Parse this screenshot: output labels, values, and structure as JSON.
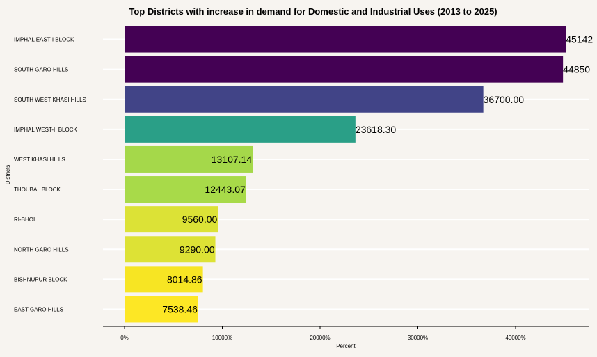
{
  "chart_data": {
    "type": "bar",
    "orientation": "horizontal",
    "title": "Top Districts with increase in demand for Domestic and Industrial Uses (2013 to 2025)",
    "xlabel": "Percent",
    "ylabel": "Districts",
    "xlim": [
      0,
      47000
    ],
    "x_ticks": [
      0,
      10000,
      20000,
      30000,
      40000
    ],
    "x_tick_labels": [
      "0%",
      "10000%",
      "20000%",
      "30000%",
      "40000%"
    ],
    "grid": "horizontal lines only",
    "background": "#f7f4f0",
    "bars": [
      {
        "category": "IMPHAL EAST-I BLOCK",
        "value": 45142.0,
        "label": "45142",
        "color": "#440154"
      },
      {
        "category": "SOUTH GARO HILLS",
        "value": 44850.0,
        "label": "44850",
        "color": "#440154"
      },
      {
        "category": "SOUTH WEST KHASI HILLS",
        "value": 36700.0,
        "label": "36700.00",
        "color": "#414487"
      },
      {
        "category": "IMPHAL WEST-II BLOCK",
        "value": 23618.3,
        "label": "23618.30",
        "color": "#2a9f87"
      },
      {
        "category": "WEST KHASI HILLS",
        "value": 13107.14,
        "label": "13107.14",
        "color": "#a5d84a"
      },
      {
        "category": "THOUBAL BLOCK",
        "value": 12443.07,
        "label": "12443.07",
        "color": "#a8da49"
      },
      {
        "category": "RI-BHOI",
        "value": 9560.0,
        "label": "9560.00",
        "color": "#dce236"
      },
      {
        "category": "NORTH GARO HILLS",
        "value": 9290.0,
        "label": "9290.00",
        "color": "#dde235"
      },
      {
        "category": "BISHNUPUR BLOCK",
        "value": 8014.86,
        "label": "8014.86",
        "color": "#f7e523"
      },
      {
        "category": "EAST GARO HILLS",
        "value": 7538.46,
        "label": "7538.46",
        "color": "#fde725"
      }
    ]
  }
}
